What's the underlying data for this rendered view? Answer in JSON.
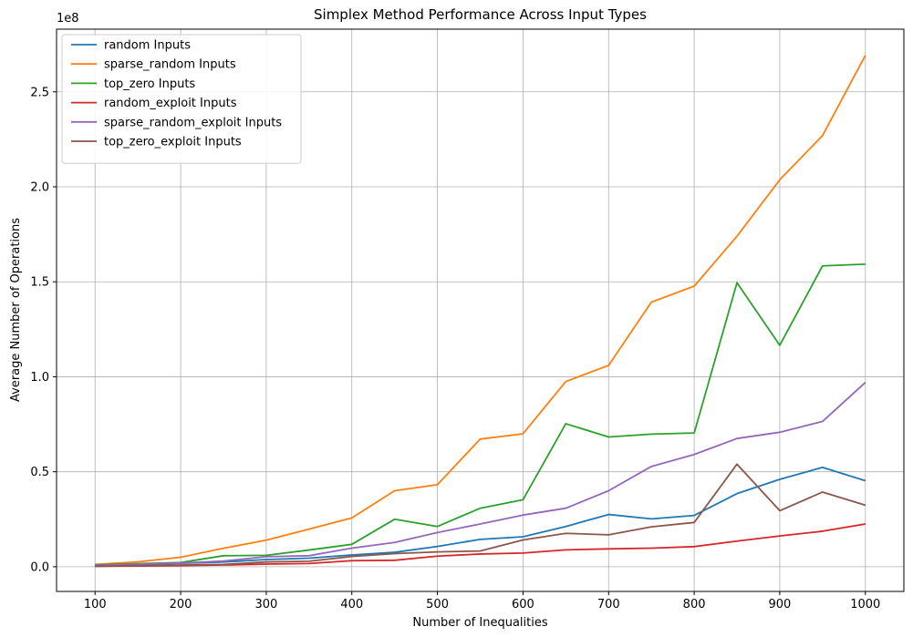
{
  "chart_data": {
    "type": "line",
    "title": "Simplex Method Performance Across Input Types",
    "xlabel": "Number of Inequalities",
    "ylabel": "Average Number of Operations",
    "y_offset_label": "1e8",
    "xlim": [
      55,
      1045
    ],
    "ylim": [
      -13000000,
      283000000
    ],
    "x_ticks": [
      100,
      200,
      300,
      400,
      500,
      600,
      700,
      800,
      900,
      1000
    ],
    "y_ticks": [
      0,
      50000000,
      100000000,
      150000000,
      200000000,
      250000000
    ],
    "y_tick_labels": [
      "0.0",
      "0.5",
      "1.0",
      "1.5",
      "2.0",
      "2.5"
    ],
    "grid": true,
    "legend_position": "top-left",
    "x": [
      100,
      150,
      200,
      250,
      300,
      350,
      400,
      450,
      500,
      550,
      600,
      650,
      700,
      750,
      800,
      850,
      900,
      950,
      1000
    ],
    "series": [
      {
        "name": "random Inputs",
        "color": "#1f77b4",
        "values": [
          500000,
          1000000,
          1800000,
          2500000,
          3800000,
          4500000,
          6200000,
          7600000,
          10700000,
          14400000,
          15800000,
          21200000,
          27500000,
          25200000,
          27000000,
          38500000,
          46000000,
          52300000,
          45300000
        ]
      },
      {
        "name": "sparse_random Inputs",
        "color": "#ff7f0e",
        "values": [
          1200000,
          2600000,
          5000000,
          9700000,
          14000000,
          19800000,
          25700000,
          40000000,
          43200000,
          67200000,
          70000000,
          97500000,
          106000000,
          139300000,
          147700000,
          174000000,
          203700000,
          227000000,
          269200000
        ]
      },
      {
        "name": "top_zero Inputs",
        "color": "#2ca02c",
        "values": [
          1000000,
          1600000,
          2200000,
          5800000,
          6000000,
          8800000,
          11800000,
          25000000,
          21200000,
          30800000,
          35300000,
          75300000,
          68300000,
          69800000,
          70400000,
          149500000,
          116600000,
          158400000,
          159300000
        ]
      },
      {
        "name": "random_exploit Inputs",
        "color": "#d62728",
        "values": [
          200000,
          400000,
          600000,
          900000,
          1400000,
          1700000,
          3200000,
          3400000,
          5600000,
          6700000,
          7200000,
          8900000,
          9400000,
          9800000,
          10600000,
          13500000,
          16200000,
          18700000,
          22500000
        ]
      },
      {
        "name": "sparse_random_exploit Inputs",
        "color": "#9467bd",
        "values": [
          800000,
          1300000,
          1900000,
          3000000,
          5300000,
          5800000,
          9800000,
          12800000,
          18000000,
          22500000,
          27200000,
          30800000,
          40000000,
          52800000,
          59100000,
          67500000,
          70800000,
          76500000,
          97000000
        ]
      },
      {
        "name": "top_zero_exploit Inputs",
        "color": "#8c564b",
        "values": [
          300000,
          500000,
          900000,
          1200000,
          2500000,
          2900000,
          5400000,
          6900000,
          7800000,
          8300000,
          14100000,
          17600000,
          16800000,
          21000000,
          23300000,
          54000000,
          29500000,
          39300000,
          32400000
        ]
      }
    ]
  }
}
